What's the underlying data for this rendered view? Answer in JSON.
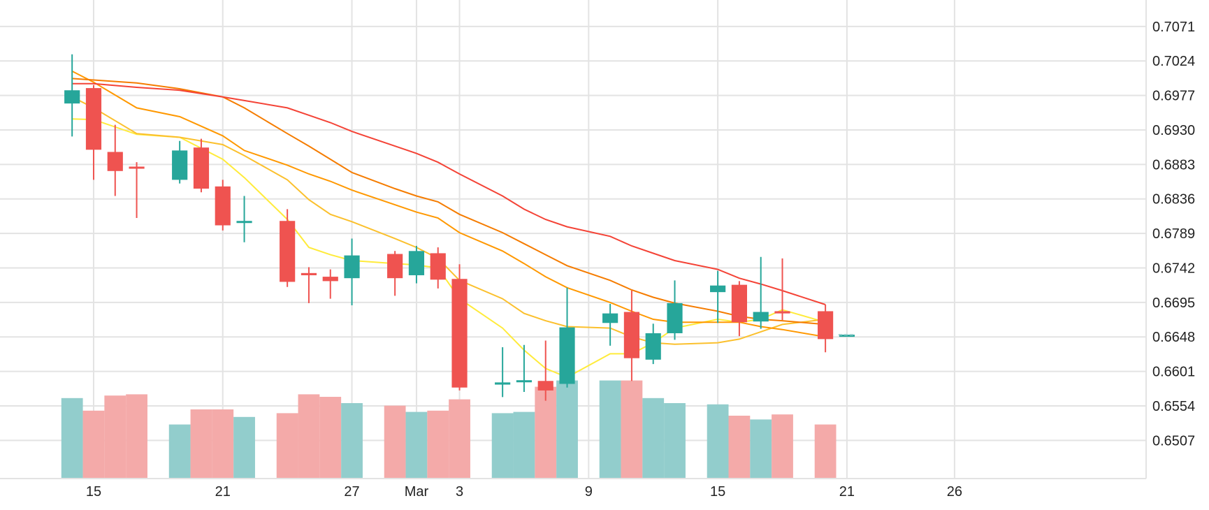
{
  "chart_data": {
    "type": "candlestick",
    "x_tick_labels": [
      {
        "day": 1,
        "label": "15"
      },
      {
        "day": 7,
        "label": "21"
      },
      {
        "day": 13,
        "label": "27"
      },
      {
        "day": 16,
        "label": "Mar"
      },
      {
        "day": 18,
        "label": "3"
      },
      {
        "day": 24,
        "label": "9"
      },
      {
        "day": 30,
        "label": "15"
      },
      {
        "day": 36,
        "label": "21"
      },
      {
        "day": 41,
        "label": "26"
      }
    ],
    "y_ticks": [
      "0.7071",
      "0.7024",
      "0.6977",
      "0.6930",
      "0.6883",
      "0.6836",
      "0.6789",
      "0.6742",
      "0.6695",
      "0.6648",
      "0.6601",
      "0.6554",
      "0.6507"
    ],
    "ylim": [
      0.6455,
      0.7107
    ],
    "xlim": [
      -3.35,
      49.9
    ],
    "colors": {
      "up": "#26a69a",
      "down": "#ef5350",
      "volume_up": "#92cdcc",
      "volume_down": "#f4aaa9"
    },
    "candles": [
      {
        "day": 0,
        "o": 0.6966,
        "h": 0.7033,
        "l": 0.6921,
        "c": 0.6984
      },
      {
        "day": 1,
        "o": 0.6987,
        "h": 0.6991,
        "l": 0.6862,
        "c": 0.6903
      },
      {
        "day": 2,
        "o": 0.69,
        "h": 0.6937,
        "l": 0.684,
        "c": 0.6874
      },
      {
        "day": 3,
        "o": 0.688,
        "h": 0.6886,
        "l": 0.681,
        "c": 0.6878
      },
      {
        "day": 5,
        "o": 0.6862,
        "h": 0.6915,
        "l": 0.6857,
        "c": 0.6902
      },
      {
        "day": 6,
        "o": 0.6906,
        "h": 0.6918,
        "l": 0.6845,
        "c": 0.685
      },
      {
        "day": 7,
        "o": 0.6853,
        "h": 0.6862,
        "l": 0.6793,
        "c": 0.68
      },
      {
        "day": 8,
        "o": 0.6804,
        "h": 0.684,
        "l": 0.6777,
        "c": 0.6806
      },
      {
        "day": 10,
        "o": 0.6806,
        "h": 0.6822,
        "l": 0.6716,
        "c": 0.6723
      },
      {
        "day": 11,
        "o": 0.6735,
        "h": 0.6743,
        "l": 0.6694,
        "c": 0.6732
      },
      {
        "day": 12,
        "o": 0.673,
        "h": 0.674,
        "l": 0.67,
        "c": 0.6724
      },
      {
        "day": 13,
        "o": 0.6728,
        "h": 0.6782,
        "l": 0.6691,
        "c": 0.6759
      },
      {
        "day": 15,
        "o": 0.6761,
        "h": 0.6765,
        "l": 0.6704,
        "c": 0.6728
      },
      {
        "day": 16,
        "o": 0.6732,
        "h": 0.6772,
        "l": 0.6721,
        "c": 0.6765
      },
      {
        "day": 17,
        "o": 0.6762,
        "h": 0.677,
        "l": 0.6714,
        "c": 0.6726
      },
      {
        "day": 18,
        "o": 0.6727,
        "h": 0.6747,
        "l": 0.6575,
        "c": 0.6579
      },
      {
        "day": 20,
        "o": 0.6583,
        "h": 0.6634,
        "l": 0.6566,
        "c": 0.6586
      },
      {
        "day": 21,
        "o": 0.6587,
        "h": 0.6637,
        "l": 0.6573,
        "c": 0.6589
      },
      {
        "day": 22,
        "o": 0.6588,
        "h": 0.6643,
        "l": 0.6561,
        "c": 0.6575
      },
      {
        "day": 23,
        "o": 0.6584,
        "h": 0.6715,
        "l": 0.6579,
        "c": 0.6661
      },
      {
        "day": 25,
        "o": 0.6667,
        "h": 0.6693,
        "l": 0.6636,
        "c": 0.668
      },
      {
        "day": 26,
        "o": 0.6682,
        "h": 0.6711,
        "l": 0.6588,
        "c": 0.6619
      },
      {
        "day": 27,
        "o": 0.6617,
        "h": 0.6666,
        "l": 0.6611,
        "c": 0.6653
      },
      {
        "day": 28,
        "o": 0.6653,
        "h": 0.6725,
        "l": 0.6644,
        "c": 0.6694
      },
      {
        "day": 30,
        "o": 0.6709,
        "h": 0.6738,
        "l": 0.6667,
        "c": 0.6718
      },
      {
        "day": 31,
        "o": 0.6719,
        "h": 0.6724,
        "l": 0.6649,
        "c": 0.6668
      },
      {
        "day": 32,
        "o": 0.6669,
        "h": 0.6757,
        "l": 0.6659,
        "c": 0.6682
      },
      {
        "day": 33,
        "o": 0.6683,
        "h": 0.6755,
        "l": 0.6671,
        "c": 0.668
      },
      {
        "day": 35,
        "o": 0.6683,
        "h": 0.6692,
        "l": 0.6627,
        "c": 0.6645
      },
      {
        "day": 36,
        "o": 0.6651,
        "h": 0.6651,
        "l": 0.6651,
        "c": 0.6651
      }
    ],
    "volume_scale_max": 100,
    "volume": [
      {
        "day": 0,
        "v": 64,
        "dir": "up"
      },
      {
        "day": 1,
        "v": 54,
        "dir": "down"
      },
      {
        "day": 2,
        "v": 66,
        "dir": "down"
      },
      {
        "day": 3,
        "v": 67,
        "dir": "down"
      },
      {
        "day": 5,
        "v": 43,
        "dir": "up"
      },
      {
        "day": 6,
        "v": 55,
        "dir": "down"
      },
      {
        "day": 7,
        "v": 55,
        "dir": "down"
      },
      {
        "day": 8,
        "v": 49,
        "dir": "up"
      },
      {
        "day": 10,
        "v": 52,
        "dir": "down"
      },
      {
        "day": 11,
        "v": 67,
        "dir": "down"
      },
      {
        "day": 12,
        "v": 65,
        "dir": "down"
      },
      {
        "day": 13,
        "v": 60,
        "dir": "up"
      },
      {
        "day": 15,
        "v": 58,
        "dir": "down"
      },
      {
        "day": 16,
        "v": 53,
        "dir": "up"
      },
      {
        "day": 17,
        "v": 54,
        "dir": "down"
      },
      {
        "day": 18,
        "v": 63,
        "dir": "down"
      },
      {
        "day": 20,
        "v": 52,
        "dir": "up"
      },
      {
        "day": 21,
        "v": 53,
        "dir": "up"
      },
      {
        "day": 22,
        "v": 73,
        "dir": "down"
      },
      {
        "day": 23,
        "v": 78,
        "dir": "up"
      },
      {
        "day": 25,
        "v": 78,
        "dir": "up"
      },
      {
        "day": 26,
        "v": 78,
        "dir": "down"
      },
      {
        "day": 27,
        "v": 64,
        "dir": "up"
      },
      {
        "day": 28,
        "v": 60,
        "dir": "up"
      },
      {
        "day": 30,
        "v": 59,
        "dir": "up"
      },
      {
        "day": 31,
        "v": 50,
        "dir": "down"
      },
      {
        "day": 32,
        "v": 47,
        "dir": "up"
      },
      {
        "day": 33,
        "v": 51,
        "dir": "down"
      },
      {
        "day": 35,
        "v": 43,
        "dir": "down"
      }
    ],
    "moving_averages": [
      {
        "color": "#ffeb3b",
        "points": [
          [
            0,
            0.6945
          ],
          [
            1,
            0.6944
          ],
          [
            3,
            0.6924
          ],
          [
            5,
            0.692
          ],
          [
            7,
            0.689
          ],
          [
            8,
            0.6865
          ],
          [
            10,
            0.6808
          ],
          [
            11,
            0.677
          ],
          [
            12,
            0.676
          ],
          [
            13,
            0.6752
          ],
          [
            15,
            0.6748
          ],
          [
            16,
            0.6746
          ],
          [
            17,
            0.6742
          ],
          [
            18,
            0.67
          ],
          [
            20,
            0.666
          ],
          [
            21,
            0.663
          ],
          [
            22,
            0.6605
          ],
          [
            23,
            0.6593
          ],
          [
            25,
            0.6625
          ],
          [
            26,
            0.6625
          ],
          [
            27,
            0.664
          ],
          [
            28,
            0.666
          ],
          [
            30,
            0.6672
          ],
          [
            31,
            0.6668
          ],
          [
            32,
            0.6672
          ],
          [
            33,
            0.6685
          ],
          [
            35,
            0.6668
          ]
        ]
      },
      {
        "color": "#fbc02d",
        "points": [
          [
            0,
            0.6975
          ],
          [
            1,
            0.696
          ],
          [
            3,
            0.6925
          ],
          [
            5,
            0.692
          ],
          [
            7,
            0.691
          ],
          [
            8,
            0.6895
          ],
          [
            10,
            0.6862
          ],
          [
            11,
            0.6835
          ],
          [
            12,
            0.6815
          ],
          [
            13,
            0.6805
          ],
          [
            15,
            0.6782
          ],
          [
            16,
            0.677
          ],
          [
            17,
            0.6755
          ],
          [
            18,
            0.6725
          ],
          [
            20,
            0.67
          ],
          [
            21,
            0.668
          ],
          [
            22,
            0.667
          ],
          [
            23,
            0.6662
          ],
          [
            25,
            0.666
          ],
          [
            26,
            0.6648
          ],
          [
            27,
            0.664
          ],
          [
            28,
            0.6638
          ],
          [
            30,
            0.664
          ],
          [
            31,
            0.6645
          ],
          [
            32,
            0.6655
          ],
          [
            33,
            0.6665
          ],
          [
            35,
            0.6672
          ]
        ]
      },
      {
        "color": "#ff9800",
        "points": [
          [
            0,
            0.701
          ],
          [
            1,
            0.6995
          ],
          [
            3,
            0.696
          ],
          [
            5,
            0.6948
          ],
          [
            7,
            0.6922
          ],
          [
            8,
            0.6902
          ],
          [
            10,
            0.6882
          ],
          [
            11,
            0.687
          ],
          [
            12,
            0.686
          ],
          [
            13,
            0.6848
          ],
          [
            15,
            0.6828
          ],
          [
            16,
            0.6818
          ],
          [
            17,
            0.681
          ],
          [
            18,
            0.679
          ],
          [
            20,
            0.6765
          ],
          [
            21,
            0.6748
          ],
          [
            22,
            0.673
          ],
          [
            23,
            0.6715
          ],
          [
            25,
            0.6695
          ],
          [
            26,
            0.6683
          ],
          [
            27,
            0.6672
          ],
          [
            28,
            0.6668
          ],
          [
            30,
            0.6668
          ],
          [
            31,
            0.6668
          ],
          [
            32,
            0.6662
          ],
          [
            33,
            0.6658
          ],
          [
            35,
            0.6648
          ]
        ]
      },
      {
        "color": "#f57c00",
        "points": [
          [
            0,
            0.7
          ],
          [
            1,
            0.6998
          ],
          [
            3,
            0.6994
          ],
          [
            5,
            0.6986
          ],
          [
            7,
            0.6975
          ],
          [
            8,
            0.696
          ],
          [
            10,
            0.6925
          ],
          [
            11,
            0.6908
          ],
          [
            12,
            0.689
          ],
          [
            13,
            0.6872
          ],
          [
            15,
            0.685
          ],
          [
            16,
            0.684
          ],
          [
            17,
            0.6832
          ],
          [
            18,
            0.6815
          ],
          [
            20,
            0.679
          ],
          [
            21,
            0.6775
          ],
          [
            22,
            0.676
          ],
          [
            23,
            0.6745
          ],
          [
            25,
            0.6725
          ],
          [
            26,
            0.6712
          ],
          [
            27,
            0.6702
          ],
          [
            28,
            0.6694
          ],
          [
            30,
            0.6683
          ],
          [
            31,
            0.6676
          ],
          [
            32,
            0.6672
          ],
          [
            33,
            0.667
          ],
          [
            35,
            0.6665
          ]
        ]
      },
      {
        "color": "#f44336",
        "points": [
          [
            0,
            0.6993
          ],
          [
            1,
            0.6993
          ],
          [
            3,
            0.6988
          ],
          [
            5,
            0.6984
          ],
          [
            7,
            0.6975
          ],
          [
            8,
            0.697
          ],
          [
            10,
            0.696
          ],
          [
            11,
            0.695
          ],
          [
            12,
            0.694
          ],
          [
            13,
            0.6928
          ],
          [
            15,
            0.6908
          ],
          [
            16,
            0.6898
          ],
          [
            17,
            0.6886
          ],
          [
            18,
            0.687
          ],
          [
            20,
            0.684
          ],
          [
            21,
            0.6822
          ],
          [
            22,
            0.6808
          ],
          [
            23,
            0.6798
          ],
          [
            25,
            0.6785
          ],
          [
            26,
            0.6772
          ],
          [
            27,
            0.6762
          ],
          [
            28,
            0.6752
          ],
          [
            30,
            0.674
          ],
          [
            31,
            0.6728
          ],
          [
            32,
            0.672
          ],
          [
            33,
            0.6711
          ],
          [
            35,
            0.6692
          ]
        ]
      }
    ]
  }
}
